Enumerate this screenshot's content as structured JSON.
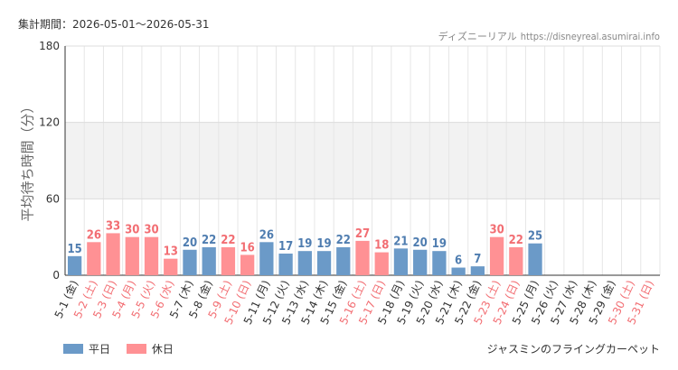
{
  "header": {
    "period_label": "集計期間：2026-05-01～2026-05-31",
    "source_name": "ディズニーリアル",
    "source_url": "https://disneyreal.asumirai.info"
  },
  "footer": {
    "attraction_name": "ジャスミンのフライングカーペット"
  },
  "colors": {
    "weekday": "#6b9ac8",
    "holiday": "#ff9194",
    "weekday_text": "#4f7db0",
    "holiday_text": "#f26d72",
    "band": "#f2f2f2"
  },
  "chart_data": {
    "type": "bar",
    "ylabel": "平均待ち時間（分）",
    "xlabel": "",
    "ylim": [
      0,
      180
    ],
    "yticks": [
      0,
      60,
      120,
      180
    ],
    "shaded_band": [
      60,
      120
    ],
    "grid": true,
    "legend_position": "bottom-left",
    "series": [
      {
        "name": "平日",
        "type": "weekday"
      },
      {
        "name": "休日",
        "type": "holiday"
      }
    ],
    "categories": [
      "5-1 (金)",
      "5-2 (土)",
      "5-3 (日)",
      "5-4 (月)",
      "5-5 (火)",
      "5-6 (水)",
      "5-7 (木)",
      "5-8 (金)",
      "5-9 (土)",
      "5-10 (日)",
      "5-11 (月)",
      "5-12 (火)",
      "5-13 (水)",
      "5-14 (木)",
      "5-15 (金)",
      "5-16 (土)",
      "5-17 (日)",
      "5-18 (月)",
      "5-19 (火)",
      "5-20 (水)",
      "5-21 (木)",
      "5-22 (金)",
      "5-23 (土)",
      "5-24 (日)",
      "5-25 (月)",
      "5-26 (火)",
      "5-27 (水)",
      "5-28 (木)",
      "5-29 (金)",
      "5-30 (土)",
      "5-31 (日)"
    ],
    "values": [
      15,
      26,
      33,
      30,
      30,
      13,
      20,
      22,
      22,
      16,
      26,
      17,
      19,
      19,
      22,
      27,
      18,
      21,
      20,
      19,
      6,
      7,
      30,
      22,
      25,
      null,
      null,
      null,
      null,
      null,
      null
    ],
    "day_type": [
      "weekday",
      "holiday",
      "holiday",
      "holiday",
      "holiday",
      "holiday",
      "weekday",
      "weekday",
      "holiday",
      "holiday",
      "weekday",
      "weekday",
      "weekday",
      "weekday",
      "weekday",
      "holiday",
      "holiday",
      "weekday",
      "weekday",
      "weekday",
      "weekday",
      "weekday",
      "holiday",
      "holiday",
      "weekday",
      "weekday",
      "weekday",
      "weekday",
      "weekday",
      "holiday",
      "holiday"
    ]
  }
}
